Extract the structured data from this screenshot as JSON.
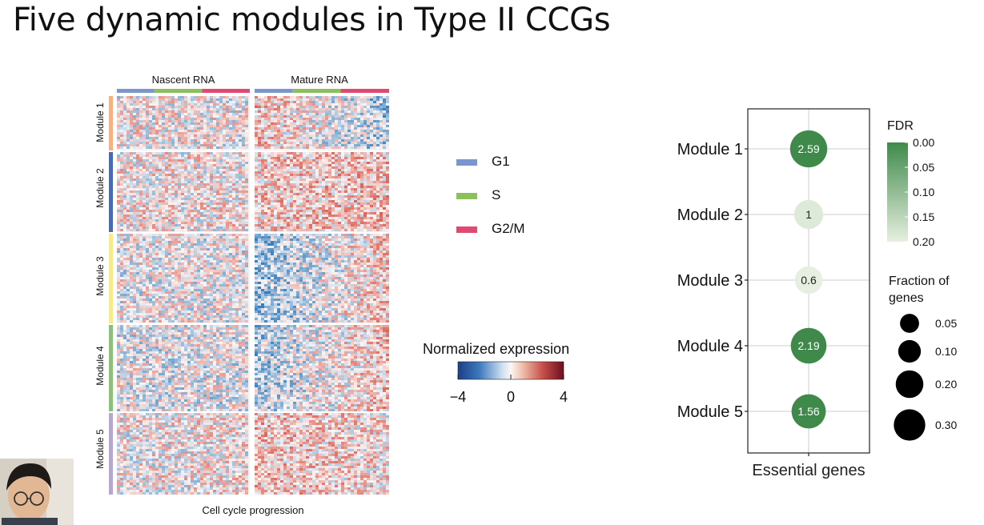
{
  "slide_title": "Five dynamic modules in Type II CCGs",
  "heatmap": {
    "columns": [
      "Nascent RNA",
      "Mature RNA"
    ],
    "xlabel": "Cell cycle progression",
    "modules": [
      "Module 1",
      "Module 2",
      "Module 3",
      "Module 4",
      "Module 5"
    ],
    "module_colors": [
      "#f4b183",
      "#4a6aae",
      "#f7e98e",
      "#8cc07a",
      "#b6a7cf"
    ]
  },
  "phase_legend": {
    "items": [
      {
        "label": "G1",
        "color": "#7b96cc"
      },
      {
        "label": "S",
        "color": "#8cc05a"
      },
      {
        "label": "G2/M",
        "color": "#e04a70"
      }
    ]
  },
  "colorbar": {
    "title": "Normalized expression",
    "ticks": [
      "−4",
      "0",
      "4"
    ]
  },
  "chart_data": {
    "type": "scatter",
    "x_categories": [
      "Essential genes"
    ],
    "y_categories": [
      "Module 1",
      "Module 2",
      "Module 3",
      "Module 4",
      "Module 5"
    ],
    "values": [
      2.59,
      1,
      0.6,
      2.19,
      1.56
    ],
    "value_labels": [
      "2.59",
      "1",
      "0.6",
      "2.19",
      "1.56"
    ],
    "fdr": [
      0.0,
      0.19,
      0.2,
      0.0,
      0.0
    ],
    "fraction_of_genes": [
      0.27,
      0.12,
      0.1,
      0.24,
      0.21
    ],
    "xlabel": "Essential genes",
    "fdr_legend": {
      "title": "FDR",
      "ticks": [
        "0.00",
        "0.05",
        "0.10",
        "0.15",
        "0.20"
      ]
    },
    "size_legend": {
      "title_line1": "Fraction of",
      "title_line2": "genes",
      "values": [
        0.05,
        0.1,
        0.2,
        0.3
      ],
      "labels": [
        "0.05",
        "0.10",
        "0.20",
        "0.30"
      ]
    },
    "colors": {
      "low_fdr": "#3f8a4a",
      "high_fdr": "#e6efe0"
    }
  }
}
